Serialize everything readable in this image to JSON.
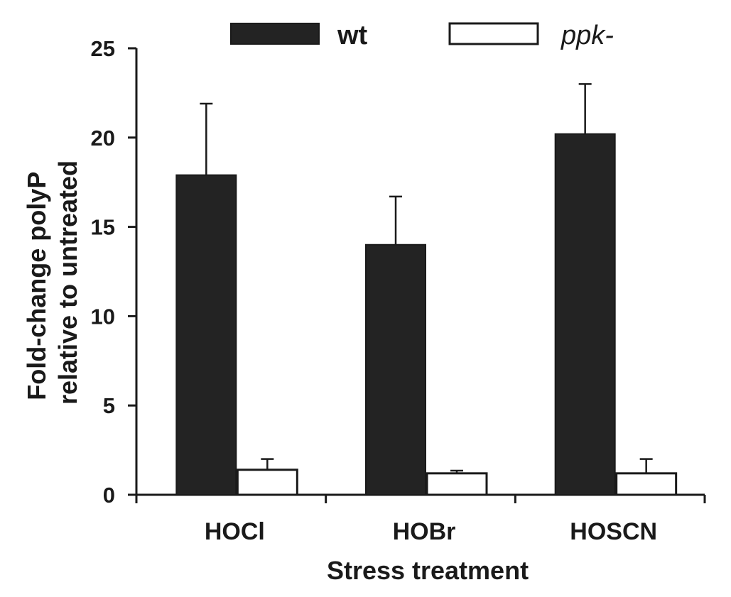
{
  "chart_data": {
    "type": "bar",
    "categories": [
      "HOCl",
      "HOBr",
      "HOSCN"
    ],
    "series": [
      {
        "name": "wt",
        "values": [
          17.9,
          14.0,
          20.2
        ],
        "errors": [
          4.0,
          2.7,
          2.8
        ],
        "fill": "#232323",
        "italic": false,
        "bold": true
      },
      {
        "name": "ppk-",
        "values": [
          1.4,
          1.2,
          1.2
        ],
        "errors": [
          0.6,
          0.15,
          0.8
        ],
        "fill": "#ffffff",
        "italic": true,
        "bold": false
      }
    ],
    "title": "",
    "xlabel": "Stress treatment",
    "ylabel_lines": [
      "Fold-change polyP",
      "relative to untreated"
    ],
    "ylim": [
      0,
      25
    ],
    "yticks": [
      0,
      5,
      10,
      15,
      20,
      25
    ],
    "grid": false,
    "legend_position": "top"
  }
}
